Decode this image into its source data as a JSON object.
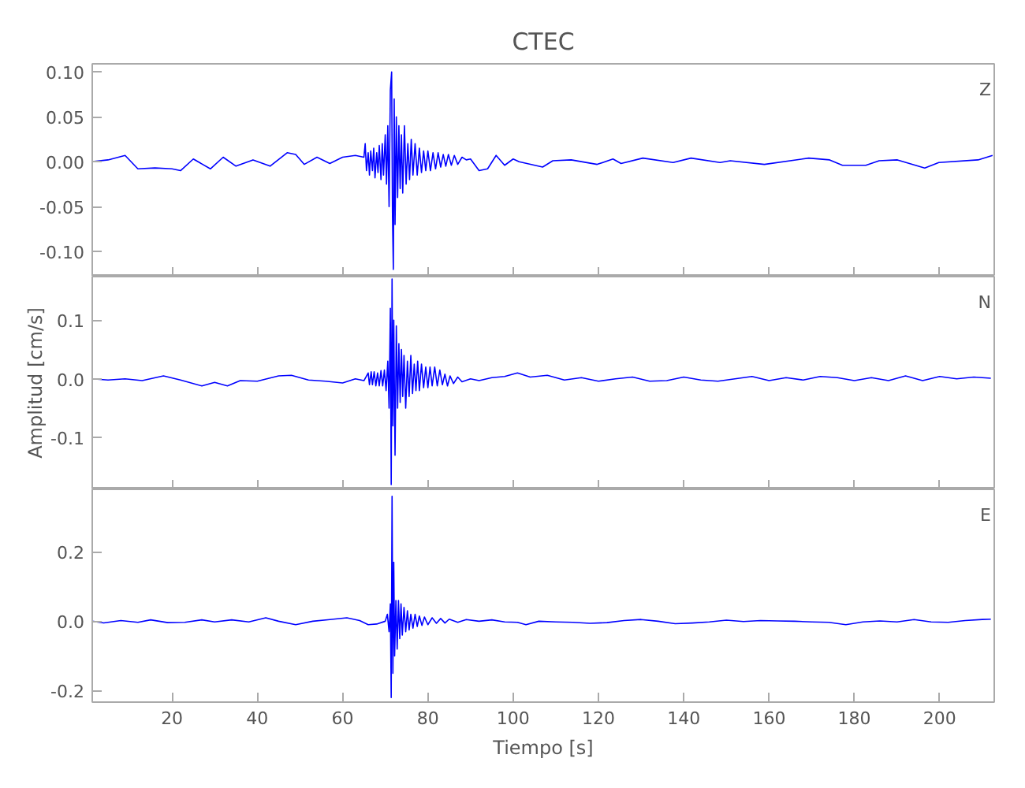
{
  "chart_data": [
    {
      "type": "line",
      "title": "CTEC",
      "annotations": [
        "Z"
      ],
      "tick_labels": "y",
      "grid": false,
      "xlim": [
        1.3,
        212.8
      ],
      "xticks": [
        20,
        40,
        60,
        80,
        100,
        120,
        140,
        160,
        180,
        200
      ],
      "ylim": [
        -0.128,
        0.109
      ],
      "yticks": [
        {
          "value": -0.1,
          "label": "-0.10"
        },
        {
          "value": -0.05,
          "label": "-0.05"
        },
        {
          "value": 0,
          "label": "0.00"
        },
        {
          "value": 0.05,
          "label": "0.05"
        },
        {
          "value": 0.1,
          "label": "0.10"
        }
      ],
      "series": [
        {
          "color": "#0000ff",
          "x": [
            1.3,
            5,
            9,
            12,
            16,
            20,
            22,
            25,
            29,
            32,
            35,
            39,
            43,
            47,
            49,
            51,
            54,
            57,
            60,
            63,
            65.0,
            65.3,
            65.6,
            66.0,
            66.3,
            66.6,
            67.0,
            67.3,
            67.6,
            68.0,
            68.3,
            68.6,
            69.0,
            69.3,
            69.6,
            70.0,
            70.3,
            70.6,
            70.9,
            71.2,
            71.5,
            71.7,
            71.9,
            72.1,
            72.3,
            72.6,
            72.9,
            73.2,
            73.5,
            73.8,
            74.1,
            74.5,
            74.9,
            75.3,
            75.7,
            76.1,
            76.5,
            77.0,
            77.5,
            78.0,
            78.5,
            79.0,
            79.5,
            80.0,
            80.6,
            81.2,
            81.8,
            82.4,
            83.0,
            83.6,
            84.2,
            84.8,
            85.5,
            86.2,
            87.0,
            88.0,
            89.0,
            90.0,
            92,
            94,
            96,
            98,
            100,
            101.4,
            106.9,
            109.3,
            113.6,
            119.7,
            123.4,
            125.3,
            130.4,
            137.5,
            141.7,
            148.5,
            150.9,
            158.9,
            169.3,
            174.2,
            177.2,
            182.7,
            185.8,
            190.1,
            196.5,
            199.8,
            209,
            212.4
          ],
          "values": [
            0.0,
            0.002,
            0.007,
            -0.008,
            -0.007,
            -0.008,
            -0.01,
            0.003,
            -0.008,
            0.005,
            -0.005,
            0.002,
            -0.005,
            0.01,
            0.008,
            -0.003,
            0.005,
            -0.002,
            0.005,
            0.007,
            0.005,
            0.02,
            -0.01,
            0.01,
            -0.015,
            0.012,
            -0.01,
            0.015,
            -0.018,
            0.01,
            -0.012,
            0.018,
            -0.02,
            0.02,
            -0.015,
            0.03,
            -0.025,
            0.04,
            -0.05,
            0.08,
            0.1,
            -0.06,
            -0.12,
            0.07,
            -0.07,
            0.05,
            -0.04,
            0.04,
            -0.03,
            0.03,
            -0.035,
            0.04,
            -0.025,
            0.02,
            -0.02,
            0.025,
            -0.015,
            0.02,
            -0.015,
            0.015,
            -0.012,
            0.012,
            -0.01,
            0.012,
            -0.01,
            0.01,
            -0.008,
            0.01,
            -0.006,
            0.008,
            -0.005,
            0.008,
            -0.004,
            0.007,
            -0.003,
            0.005,
            0.002,
            0.003,
            -0.01,
            -0.008,
            0.007,
            -0.004,
            0.003,
            0.0,
            -0.006,
            0.001,
            0.002,
            -0.003,
            0.003,
            -0.002,
            0.004,
            -0.001,
            0.004,
            -0.001,
            0.001,
            -0.003,
            0.004,
            0.002,
            -0.004,
            -0.004,
            0.001,
            0.002,
            -0.007,
            -0.001,
            0.002,
            0.007
          ]
        }
      ]
    },
    {
      "type": "line",
      "annotations": [
        "N"
      ],
      "ylabel": "Amplitud [cm/s]",
      "tick_labels": "y",
      "grid": false,
      "xlim": [
        1.3,
        212.8
      ],
      "xticks": [
        20,
        40,
        60,
        80,
        100,
        120,
        140,
        160,
        180,
        200
      ],
      "ylim": [
        -0.188,
        0.174
      ],
      "yticks": [
        {
          "value": -0.1,
          "label": "-0.1"
        },
        {
          "value": 0,
          "label": "0.0"
        },
        {
          "value": 0.1,
          "label": "0.1"
        }
      ],
      "series": [
        {
          "color": "#0000ff",
          "x": [
            1.3,
            5,
            9,
            13,
            18,
            22,
            27,
            30,
            33,
            36,
            40,
            45,
            48,
            52,
            56,
            60,
            63,
            65,
            66,
            66.3,
            66.7,
            67.0,
            67.4,
            67.8,
            68.2,
            68.6,
            69.0,
            69.4,
            69.8,
            70.2,
            70.6,
            70.9,
            71.2,
            71.4,
            71.6,
            71.8,
            72.0,
            72.3,
            72.6,
            72.9,
            73.2,
            73.5,
            73.8,
            74.1,
            74.4,
            74.8,
            75.2,
            75.6,
            76.0,
            76.4,
            76.8,
            77.2,
            77.6,
            78.0,
            78.5,
            79.0,
            79.5,
            80.0,
            80.5,
            81.0,
            81.6,
            82.2,
            82.8,
            83.4,
            84.0,
            84.6,
            85.2,
            86.0,
            87.0,
            88,
            90,
            92,
            95,
            98,
            101,
            104,
            108,
            112,
            116,
            120,
            124,
            128,
            132,
            136,
            140,
            144,
            148,
            152,
            156,
            160,
            164,
            168,
            172,
            176,
            180,
            184,
            188,
            192,
            196,
            200,
            204,
            208,
            212
          ],
          "values": [
            0.0,
            -0.002,
            0.0,
            -0.003,
            0.005,
            -0.002,
            -0.012,
            -0.006,
            -0.012,
            -0.003,
            -0.004,
            0.005,
            0.006,
            -0.002,
            -0.004,
            -0.007,
            0.0,
            -0.003,
            0.01,
            -0.01,
            0.012,
            -0.01,
            0.012,
            -0.012,
            0.01,
            -0.012,
            0.014,
            -0.012,
            0.015,
            -0.02,
            0.03,
            -0.05,
            0.12,
            -0.18,
            0.17,
            -0.08,
            0.1,
            -0.13,
            0.09,
            -0.05,
            0.06,
            -0.04,
            0.05,
            -0.03,
            0.04,
            -0.05,
            0.03,
            -0.03,
            0.04,
            -0.025,
            0.025,
            -0.02,
            0.03,
            -0.02,
            0.025,
            -0.015,
            0.02,
            -0.015,
            0.02,
            -0.012,
            0.02,
            -0.012,
            0.015,
            -0.01,
            0.008,
            -0.012,
            0.005,
            -0.008,
            0.003,
            -0.005,
            0.0,
            -0.003,
            0.002,
            0.004,
            0.01,
            0.003,
            0.006,
            -0.002,
            0.002,
            -0.004,
            0.0,
            0.003,
            -0.004,
            -0.003,
            0.003,
            -0.002,
            -0.004,
            0.0,
            0.004,
            -0.003,
            0.002,
            -0.002,
            0.004,
            0.002,
            -0.003,
            0.002,
            -0.003,
            0.005,
            -0.003,
            0.004,
            0.0,
            0.003,
            0.001
          ]
        }
      ]
    },
    {
      "type": "line",
      "annotations": [
        "E"
      ],
      "xlabel": "Tiempo [s]",
      "grid": false,
      "xlim": [
        1.3,
        212.8
      ],
      "xticks": [
        20,
        40,
        60,
        80,
        100,
        120,
        140,
        160,
        180,
        200
      ],
      "ylim": [
        -0.233,
        0.38
      ],
      "yticks": [
        {
          "value": -0.2,
          "label": "-0.2"
        },
        {
          "value": 0,
          "label": "0.0"
        },
        {
          "value": 0.2,
          "label": "0.2"
        }
      ],
      "series": [
        {
          "color": "#0000ff",
          "x": [
            1.3,
            4,
            8,
            12,
            15,
            19,
            23,
            27,
            30,
            34,
            38,
            42,
            45,
            49,
            53,
            57,
            61,
            64,
            66,
            68,
            70,
            70.5,
            70.9,
            71.2,
            71.4,
            71.6,
            71.8,
            72.0,
            72.2,
            72.5,
            72.8,
            73.1,
            73.4,
            73.7,
            74.0,
            74.4,
            74.8,
            75.2,
            75.6,
            76.0,
            76.5,
            77.0,
            77.5,
            78.0,
            78.6,
            79.2,
            80,
            81,
            82,
            83,
            84,
            85,
            87,
            89,
            92,
            95,
            98,
            101,
            103,
            106,
            110,
            114,
            118,
            122,
            126,
            130,
            134,
            138,
            142,
            146,
            150,
            154,
            158,
            162,
            166,
            170,
            174,
            178,
            182,
            186,
            190,
            194,
            198,
            202,
            206,
            210,
            212
          ],
          "values": [
            0.0,
            -0.005,
            0.002,
            -0.003,
            0.004,
            -0.004,
            -0.003,
            0.004,
            -0.002,
            0.004,
            -0.002,
            0.01,
            0.0,
            -0.01,
            0.0,
            0.005,
            0.01,
            0.002,
            -0.01,
            -0.008,
            0.0,
            0.02,
            -0.03,
            0.05,
            -0.22,
            0.36,
            -0.15,
            0.17,
            -0.1,
            0.06,
            -0.08,
            0.06,
            -0.05,
            0.05,
            -0.04,
            0.04,
            -0.03,
            0.03,
            -0.025,
            0.02,
            -0.02,
            0.02,
            -0.015,
            0.015,
            -0.012,
            0.012,
            -0.01,
            0.01,
            -0.006,
            0.008,
            -0.005,
            0.006,
            -0.003,
            0.005,
            0.0,
            0.004,
            -0.002,
            -0.003,
            -0.01,
            0.0,
            -0.002,
            -0.003,
            -0.006,
            -0.004,
            0.002,
            0.005,
            0.0,
            -0.007,
            -0.005,
            -0.002,
            0.003,
            -0.001,
            0.002,
            0.001,
            0.0,
            -0.002,
            -0.003,
            -0.01,
            -0.002,
            0.001,
            -0.002,
            0.005,
            -0.002,
            -0.003,
            0.002,
            0.005,
            0.006
          ]
        }
      ]
    }
  ]
}
